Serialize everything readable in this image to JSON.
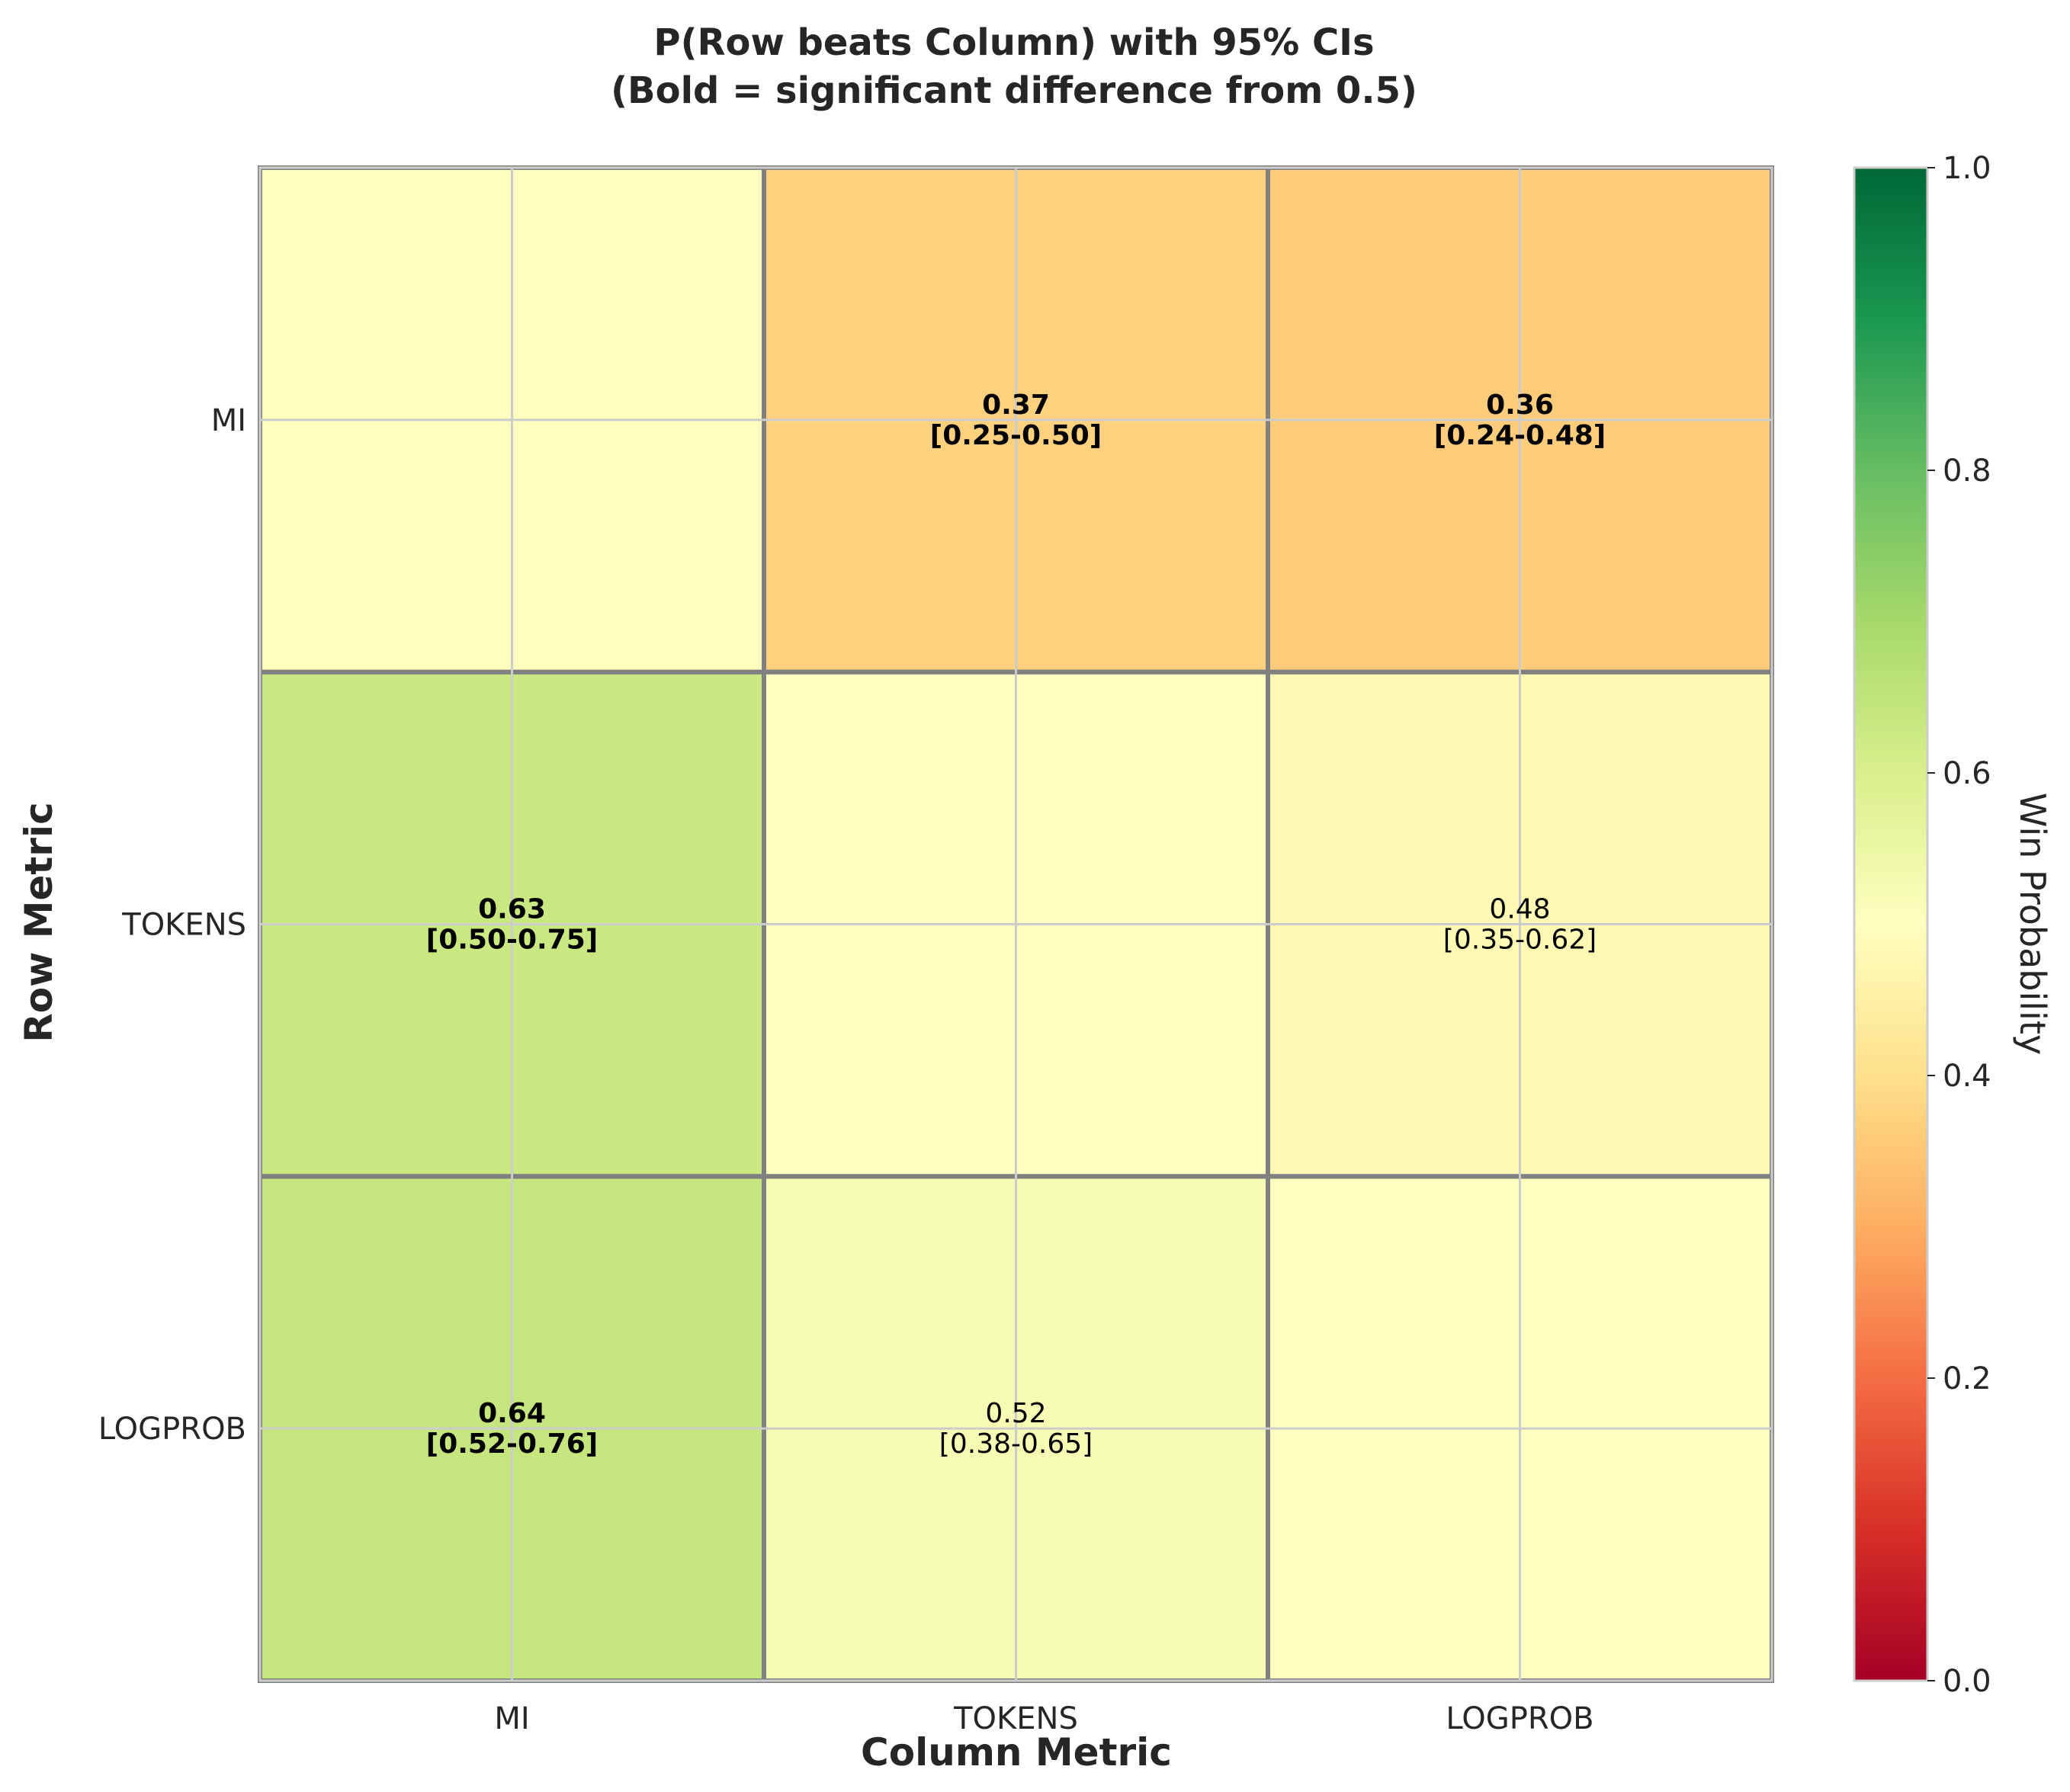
{
  "chart_data": {
    "type": "heatmap",
    "title_lines": [
      "P(Row beats Column) with 95% CIs",
      "(Bold = significant difference from 0.5)"
    ],
    "xlabel": "Column Metric",
    "ylabel": "Row Metric",
    "row_labels": [
      "MI",
      "TOKENS",
      "LOGPROB"
    ],
    "col_labels": [
      "MI",
      "TOKENS",
      "LOGPROB"
    ],
    "cells": [
      [
        {
          "value": 0.5,
          "shown": false,
          "bold": false,
          "value_text": "",
          "ci_text": ""
        },
        {
          "value": 0.37,
          "shown": true,
          "bold": true,
          "value_text": "0.37",
          "ci_text": "[0.25-0.50]"
        },
        {
          "value": 0.36,
          "shown": true,
          "bold": true,
          "value_text": "0.36",
          "ci_text": "[0.24-0.48]"
        }
      ],
      [
        {
          "value": 0.63,
          "shown": true,
          "bold": true,
          "value_text": "0.63",
          "ci_text": "[0.50-0.75]"
        },
        {
          "value": 0.5,
          "shown": false,
          "bold": false,
          "value_text": "",
          "ci_text": ""
        },
        {
          "value": 0.48,
          "shown": true,
          "bold": false,
          "value_text": "0.48",
          "ci_text": "[0.35-0.62]"
        }
      ],
      [
        {
          "value": 0.64,
          "shown": true,
          "bold": true,
          "value_text": "0.64",
          "ci_text": "[0.52-0.76]"
        },
        {
          "value": 0.52,
          "shown": true,
          "bold": false,
          "value_text": "0.52",
          "ci_text": "[0.38-0.65]"
        },
        {
          "value": 0.5,
          "shown": false,
          "bold": false,
          "value_text": "",
          "ci_text": ""
        }
      ]
    ],
    "colorbar": {
      "label": "Win Probability",
      "range": [
        0,
        1
      ],
      "ticks": [
        "0.0",
        "0.2",
        "0.4",
        "0.6",
        "0.8",
        "1.0"
      ],
      "colormap": "RdYlGn"
    },
    "colors": {
      "cell_border": "#808080",
      "grid": "#cccccc",
      "frame": "#cccccc"
    }
  }
}
